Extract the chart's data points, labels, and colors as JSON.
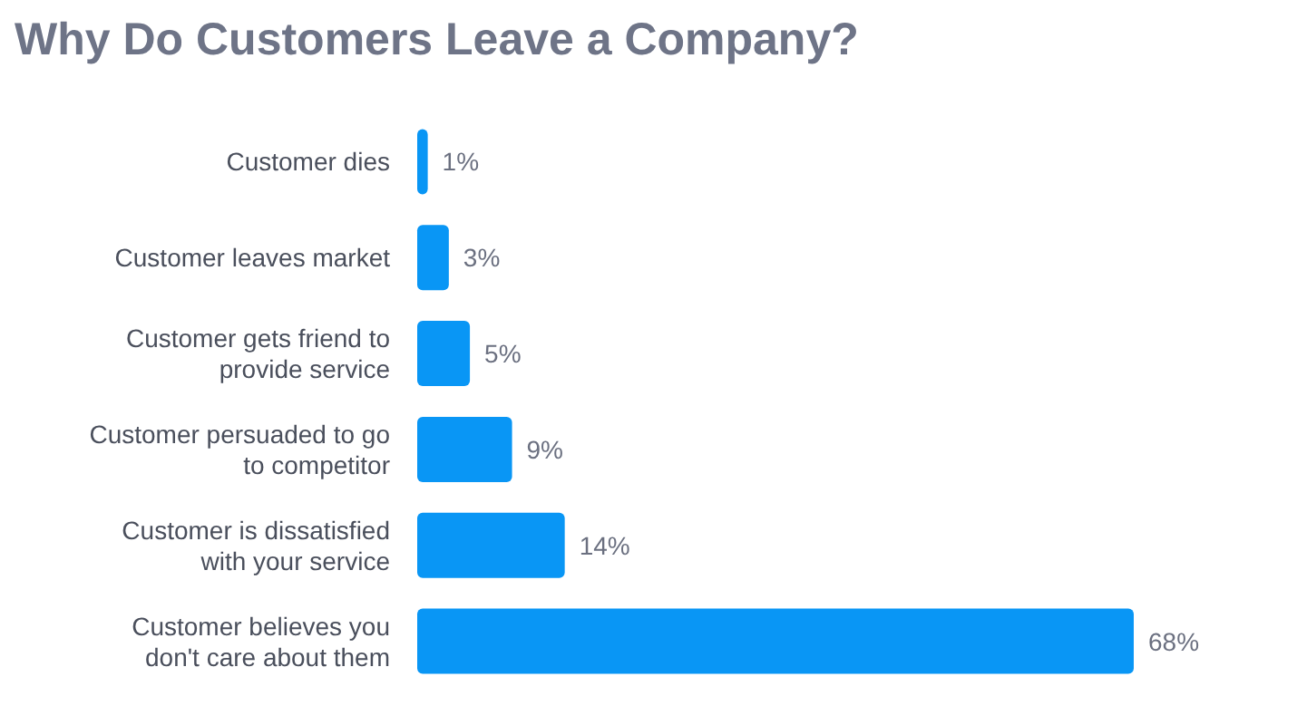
{
  "chart_data": {
    "type": "bar",
    "orientation": "horizontal",
    "title": "Why Do Customers Leave a Company?",
    "categories": [
      "Customer dies",
      "Customer leaves market",
      "Customer gets friend to provide service",
      "Customer persuaded to go to competitor",
      "Customer is dissatisfied with your service",
      "Customer believes you don't care about them"
    ],
    "values": [
      1,
      3,
      5,
      9,
      14,
      68
    ],
    "value_labels": [
      "1%",
      "3%",
      "5%",
      "9%",
      "14%",
      "68%"
    ],
    "color": "#0996f5"
  }
}
